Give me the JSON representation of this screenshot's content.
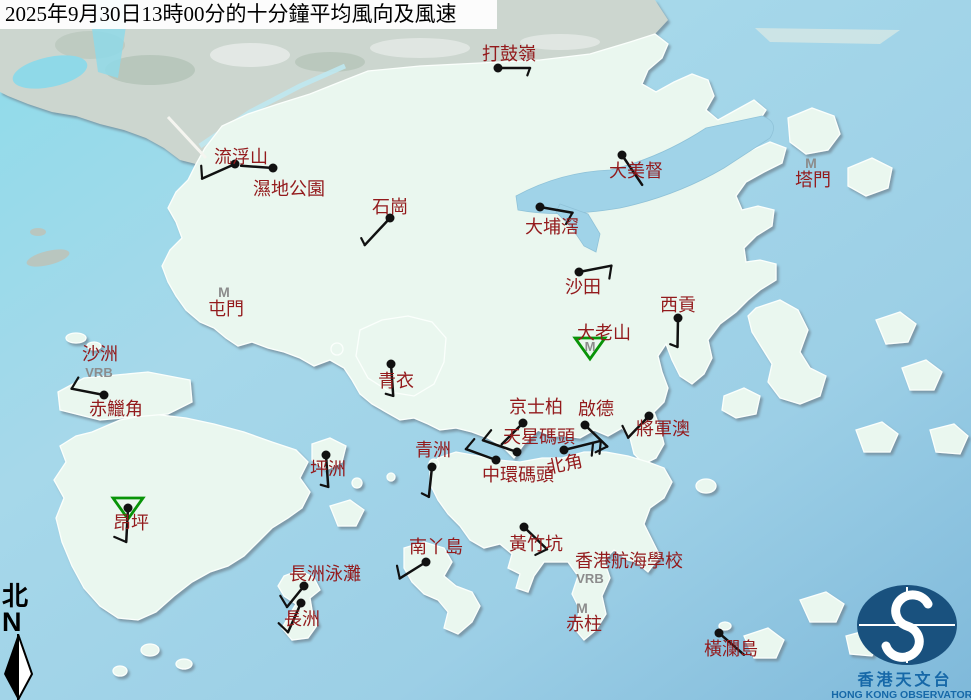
{
  "title_bar": {
    "text": "2025年9月30日13時00分的十分鐘平均風向及風速"
  },
  "compass": {
    "hanzi": "北",
    "letter": "N"
  },
  "logo": {
    "name_zh": "香港天文台",
    "name_en": "HONG KONG OBSERVATORY"
  },
  "symbols": {
    "maintenance": "M",
    "variable": "VRB"
  },
  "colors": {
    "label_red": "#931a1c",
    "flag_gray": "#8c8c8c",
    "triangle_green": "#089408",
    "barb_black": "#111111",
    "logo_blue": "#19517e",
    "logo_text_blue": "#1668a8"
  },
  "stations": [
    {
      "id": "ta-kwu-ling",
      "name": "打鼓嶺",
      "label": [
        509,
        60
      ],
      "dot": [
        498,
        68
      ],
      "barb": {
        "a": 0,
        "l": 32,
        "t": [
          0.6
        ]
      }
    },
    {
      "id": "lau-fau-shan",
      "name": "流浮山",
      "label": [
        241,
        163
      ],
      "dot": [
        235,
        164
      ],
      "barb": {
        "a": 156,
        "l": 36,
        "t": [
          1
        ]
      }
    },
    {
      "id": "wetland-park",
      "name": "濕地公園",
      "label": [
        289,
        195
      ],
      "dot": [
        273,
        168
      ],
      "barb": {
        "a": 184,
        "l": 32,
        "t": []
      }
    },
    {
      "id": "shek-kong",
      "name": "石崗",
      "label": [
        390,
        213
      ],
      "dot": [
        390,
        218
      ],
      "barb": {
        "a": 133,
        "l": 37,
        "t": [
          0.6
        ]
      }
    },
    {
      "id": "tai-mei-tuk",
      "name": "大美督",
      "label": [
        636,
        177
      ],
      "dot": [
        622,
        155
      ],
      "barb": {
        "a": 56,
        "l": 36,
        "t": []
      }
    },
    {
      "id": "tap-mun",
      "name": "塔門",
      "label": [
        813,
        186
      ],
      "m": [
        811,
        168
      ]
    },
    {
      "id": "tai-po-kau",
      "name": "大埔滘",
      "label": [
        552,
        233
      ],
      "dot": [
        540,
        207
      ],
      "barb": {
        "a": 10,
        "l": 33,
        "t": [
          1
        ]
      }
    },
    {
      "id": "sha-tin",
      "name": "沙田",
      "label": [
        583,
        293
      ],
      "dot": [
        579,
        272
      ],
      "barb": {
        "a": -11,
        "l": 33,
        "t": [
          1
        ]
      }
    },
    {
      "id": "sai-kung",
      "name": "西貢",
      "label": [
        678,
        311
      ],
      "dot": [
        678,
        318
      ],
      "barb": {
        "a": 91,
        "l": 29,
        "t": [
          0.6
        ]
      }
    },
    {
      "id": "tates-cairn",
      "name": "大老山",
      "label": [
        604,
        339
      ],
      "triangle": [
        590,
        347
      ],
      "tri_m": true
    },
    {
      "id": "tuen-mun",
      "name": "屯門",
      "label": [
        226,
        315
      ],
      "m": [
        224,
        297
      ]
    },
    {
      "id": "sha-chau",
      "name": "沙洲",
      "label": [
        100,
        360
      ],
      "vrb": [
        99,
        377
      ]
    },
    {
      "id": "chek-lap-kok",
      "name": "赤鱲角",
      "label": [
        116,
        415
      ],
      "dot": [
        104,
        395
      ],
      "barb": {
        "a": 191,
        "l": 33,
        "t": [
          1
        ]
      }
    },
    {
      "id": "tsing-yi",
      "name": "青衣",
      "label": [
        396,
        387
      ],
      "dot": [
        391,
        364
      ],
      "barb": {
        "a": 86,
        "l": 32,
        "t": [
          0.6
        ]
      }
    },
    {
      "id": "kings-park",
      "name": "京士柏",
      "label": [
        536,
        413
      ],
      "dot": [
        523,
        423
      ],
      "barb": {
        "a": 135,
        "l": 30,
        "t": []
      }
    },
    {
      "id": "kai-tak",
      "name": "啟德",
      "label": [
        596,
        415
      ],
      "dot": [
        585,
        425
      ],
      "barb": {
        "a": 44,
        "l": 31,
        "t": [
          1
        ]
      }
    },
    {
      "id": "star-ferry-pier",
      "name": "天星碼頭",
      "label": [
        539,
        443
      ],
      "dot": [
        517,
        452
      ],
      "barb": {
        "a": 199,
        "l": 36,
        "t": [
          1
        ]
      }
    },
    {
      "id": "central-pier",
      "name": "中環碼頭",
      "label": [
        518,
        481
      ],
      "dot": [
        496,
        460
      ],
      "barb": {
        "a": 200,
        "l": 32,
        "t": [
          1
        ]
      }
    },
    {
      "id": "north-point",
      "name": "北角",
      "label": [
        566,
        470
      ],
      "rot": -12,
      "dot": [
        564,
        450
      ],
      "barb": {
        "a": -14,
        "l": 38,
        "t": [
          1,
          1
        ]
      }
    },
    {
      "id": "tseung-kwan-o",
      "name": "將軍澳",
      "label": [
        663,
        435
      ],
      "dot": [
        649,
        416
      ],
      "barb": {
        "a": 134,
        "l": 30,
        "t": [
          1
        ]
      }
    },
    {
      "id": "green-island",
      "name": "青洲",
      "label": [
        433,
        456
      ],
      "dot": [
        432,
        467
      ],
      "barb": {
        "a": 96,
        "l": 30,
        "t": [
          0.6
        ]
      }
    },
    {
      "id": "peng-chau",
      "name": "坪洲",
      "label": [
        328,
        475
      ],
      "dot": [
        326,
        455
      ],
      "barb": {
        "a": 86,
        "l": 32,
        "t": [
          0.6
        ]
      }
    },
    {
      "id": "ngong-ping",
      "name": "昂坪",
      "label": [
        131,
        529
      ],
      "dot": [
        128,
        508
      ],
      "triangle": [
        128,
        507
      ],
      "tri_m": false,
      "barb": {
        "a": 93,
        "l": 34,
        "t": [
          1
        ]
      }
    },
    {
      "id": "cheung-chau-beach",
      "name": "長洲泳灘",
      "label": [
        325,
        580
      ],
      "dot": [
        304,
        586
      ],
      "barb": {
        "a": 129,
        "l": 27,
        "t": [
          1
        ]
      }
    },
    {
      "id": "cheung-chau",
      "name": "長洲",
      "label": [
        302,
        625
      ],
      "dot": [
        301,
        603
      ],
      "barb": {
        "a": 114,
        "l": 32,
        "t": [
          1
        ]
      }
    },
    {
      "id": "lamma-island",
      "name": "南丫島",
      "label": [
        436,
        553
      ],
      "dot": [
        426,
        562
      ],
      "barb": {
        "a": 148,
        "l": 31,
        "t": [
          1
        ]
      }
    },
    {
      "id": "wong-chuk-hang",
      "name": "黃竹坑",
      "label": [
        536,
        550
      ],
      "dot": [
        524,
        527
      ],
      "barb": {
        "a": 44,
        "l": 32,
        "t": [
          1
        ]
      }
    },
    {
      "id": "hk-sea-school",
      "name": "香港航海學校",
      "label": [
        629,
        567
      ],
      "vrb": [
        590,
        583
      ]
    },
    {
      "id": "stanley",
      "name": "赤柱",
      "label": [
        584,
        630
      ],
      "m": [
        582,
        613
      ]
    },
    {
      "id": "waglan-island",
      "name": "橫瀾島",
      "label": [
        731,
        655
      ],
      "dot": [
        719,
        633
      ],
      "barb": {
        "a": 41,
        "l": 33,
        "t": []
      }
    }
  ]
}
